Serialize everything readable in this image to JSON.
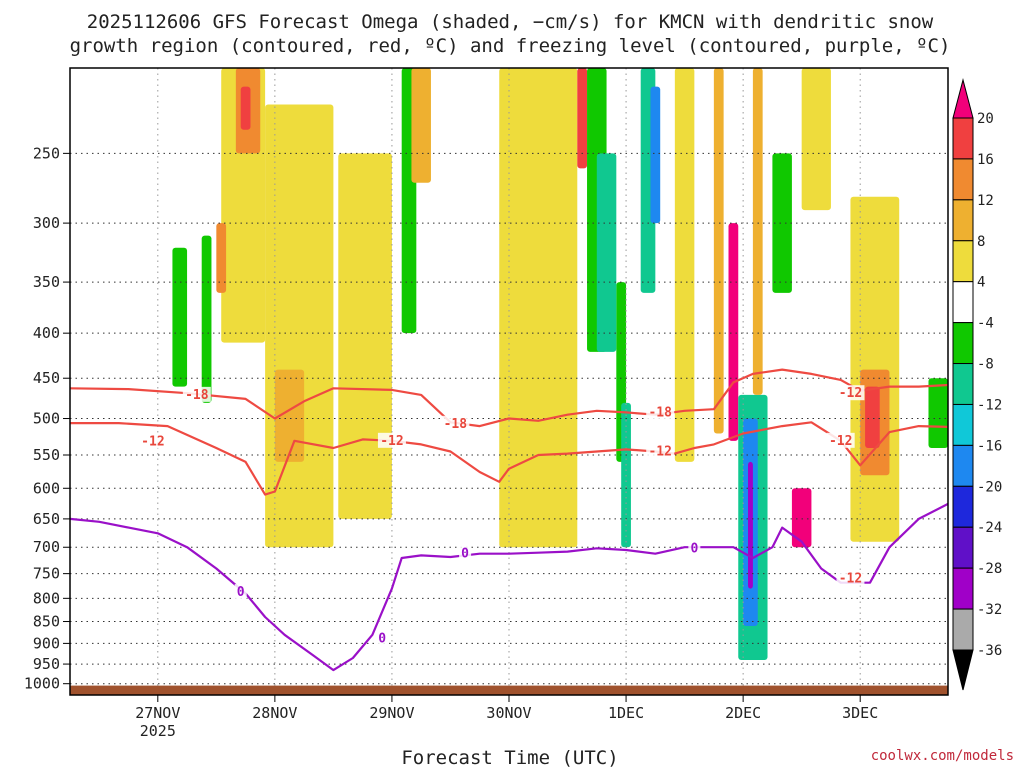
{
  "chart_data": {
    "type": "heatmap",
    "title_line1": "2025112606 GFS Forecast Omega (shaded, −cm/s) for KMCN with dendritic snow",
    "title_line2": "growth region (contoured, red, ºC) and freezing level (contoured, purple, ºC)",
    "xlabel": "Forecast Time (UTC)",
    "x_ticks": [
      {
        "t": 18,
        "label": "27NOV",
        "sublabel": "2025"
      },
      {
        "t": 42,
        "label": "28NOV"
      },
      {
        "t": 66,
        "label": "29NOV"
      },
      {
        "t": 90,
        "label": "30NOV"
      },
      {
        "t": 114,
        "label": "1DEC"
      },
      {
        "t": 138,
        "label": "2DEC"
      },
      {
        "t": 162,
        "label": "3DEC"
      }
    ],
    "x_range_hours": [
      0,
      180
    ],
    "y_ticks": [
      250,
      300,
      350,
      400,
      450,
      500,
      550,
      600,
      650,
      700,
      750,
      800,
      850,
      900,
      950,
      1000
    ],
    "y_range_hPa": [
      1030,
      200
    ],
    "colorbar": {
      "labels": [
        20,
        16,
        12,
        8,
        4,
        -4,
        -8,
        -12,
        -16,
        -20,
        -24,
        -28,
        -32,
        -36
      ],
      "colors": [
        "#f2007a",
        "#f04040",
        "#f08a30",
        "#eeb030",
        "#eedc3c",
        "#ffffff",
        "#10c800",
        "#10c890",
        "#10c8d8",
        "#1e88f0",
        "#1e28dc",
        "#6010c8",
        "#a000c8",
        "#aaaaaa",
        "#000000"
      ]
    },
    "series": [
      {
        "name": "-18",
        "color": "#ee4a42",
        "t": [
          0,
          12,
          24,
          36,
          42,
          48,
          54,
          66,
          72,
          78,
          84,
          90,
          96,
          102,
          108,
          114,
          120,
          126,
          132,
          136,
          140,
          146,
          152,
          158,
          162,
          168,
          174,
          180
        ],
        "p": [
          462,
          463,
          468,
          475,
          500,
          478,
          462,
          464,
          470,
          505,
          510,
          500,
          503,
          495,
          490,
          492,
          495,
          490,
          488,
          455,
          445,
          440,
          445,
          452,
          465,
          460,
          460,
          458
        ]
      },
      {
        "name": "-12",
        "color": "#ee4a42",
        "t": [
          0,
          10,
          20,
          30,
          36,
          40,
          42,
          46,
          54,
          60,
          66,
          72,
          78,
          84,
          88,
          90,
          96,
          102,
          108,
          114,
          120,
          124,
          128,
          132,
          138,
          146,
          152,
          158,
          162,
          168,
          174,
          180
        ],
        "p": [
          506,
          506,
          510,
          540,
          560,
          610,
          605,
          530,
          540,
          528,
          530,
          535,
          545,
          575,
          590,
          570,
          550,
          548,
          545,
          542,
          545,
          548,
          540,
          535,
          520,
          510,
          505,
          530,
          565,
          518,
          510,
          511
        ]
      },
      {
        "name": "0",
        "color": "#9a10c8",
        "t": [
          0,
          6,
          12,
          18,
          24,
          30,
          36,
          40,
          44,
          50,
          54,
          58,
          62,
          66,
          68,
          72,
          78,
          84,
          90,
          96,
          102,
          108,
          114,
          120,
          126,
          132,
          136,
          140,
          144,
          146,
          150,
          154,
          158,
          164,
          168,
          174,
          180
        ],
        "p": [
          650,
          655,
          665,
          675,
          700,
          740,
          790,
          840,
          880,
          930,
          965,
          935,
          880,
          780,
          720,
          715,
          718,
          712,
          712,
          710,
          708,
          702,
          705,
          712,
          700,
          700,
          700,
          720,
          700,
          665,
          690,
          740,
          768,
          768,
          700,
          650,
          625
        ]
      }
    ],
    "contour_labels": [
      {
        "text": "-18",
        "t": 26,
        "p": 470
      },
      {
        "text": "-18",
        "t": 79,
        "p": 507
      },
      {
        "text": "-18",
        "t": 121,
        "p": 492
      },
      {
        "text": "-12",
        "t": 17,
        "p": 531
      },
      {
        "text": "-12",
        "t": 66,
        "p": 530
      },
      {
        "text": "-12",
        "t": 121,
        "p": 545
      },
      {
        "text": "-12",
        "t": 158,
        "p": 530
      },
      {
        "text": "-12",
        "t": 160,
        "p": 468
      },
      {
        "text": "0",
        "t": 35,
        "p": 787
      },
      {
        "text": "0",
        "t": 81,
        "p": 712
      },
      {
        "text": "0",
        "t": 128,
        "p": 702
      },
      {
        "text": "0",
        "t": 64,
        "p": 888
      },
      {
        "text": "-12",
        "t": 160,
        "p": 760
      }
    ],
    "shaded_regions": [
      {
        "t0": 31,
        "t1": 40,
        "p0": 200,
        "p1": 410,
        "v": 6
      },
      {
        "t0": 34,
        "t1": 39,
        "p0": 200,
        "p1": 250,
        "v": 12
      },
      {
        "t0": 35,
        "t1": 37,
        "p0": 210,
        "p1": 235,
        "v": 18
      },
      {
        "t0": 30,
        "t1": 32,
        "p0": 300,
        "p1": 360,
        "v": 14
      },
      {
        "t0": 21,
        "t1": 24,
        "p0": 320,
        "p1": 460,
        "v": -6
      },
      {
        "t0": 27,
        "t1": 29,
        "p0": 310,
        "p1": 480,
        "v": -6
      },
      {
        "t0": 40,
        "t1": 54,
        "p0": 220,
        "p1": 700,
        "v": 5
      },
      {
        "t0": 42,
        "t1": 48,
        "p0": 440,
        "p1": 560,
        "v": 10
      },
      {
        "t0": 55,
        "t1": 66,
        "p0": 250,
        "p1": 650,
        "v": 5
      },
      {
        "t0": 68,
        "t1": 71,
        "p0": 200,
        "p1": 400,
        "v": -6
      },
      {
        "t0": 70,
        "t1": 74,
        "p0": 200,
        "p1": 270,
        "v": 10
      },
      {
        "t0": 88,
        "t1": 104,
        "p0": 200,
        "p1": 700,
        "v": 5
      },
      {
        "t0": 104,
        "t1": 106,
        "p0": 200,
        "p1": 260,
        "v": 18
      },
      {
        "t0": 106,
        "t1": 110,
        "p0": 200,
        "p1": 420,
        "v": -6
      },
      {
        "t0": 112,
        "t1": 114,
        "p0": 350,
        "p1": 560,
        "v": -8
      },
      {
        "t0": 108,
        "t1": 112,
        "p0": 250,
        "p1": 420,
        "v": -12
      },
      {
        "t0": 113,
        "t1": 115,
        "p0": 480,
        "p1": 700,
        "v": -10
      },
      {
        "t0": 117,
        "t1": 120,
        "p0": 200,
        "p1": 360,
        "v": -10
      },
      {
        "t0": 119,
        "t1": 121,
        "p0": 210,
        "p1": 300,
        "v": -20
      },
      {
        "t0": 124,
        "t1": 128,
        "p0": 200,
        "p1": 560,
        "v": 5
      },
      {
        "t0": 132,
        "t1": 134,
        "p0": 200,
        "p1": 520,
        "v": 8
      },
      {
        "t0": 135,
        "t1": 137,
        "p0": 300,
        "p1": 530,
        "v": 20
      },
      {
        "t0": 137,
        "t1": 143,
        "p0": 470,
        "p1": 940,
        "v": -10
      },
      {
        "t0": 138,
        "t1": 141,
        "p0": 500,
        "p1": 860,
        "v": -18
      },
      {
        "t0": 139,
        "t1": 140,
        "p0": 560,
        "p1": 780,
        "v": -30
      },
      {
        "t0": 140,
        "t1": 142,
        "p0": 200,
        "p1": 470,
        "v": 10
      },
      {
        "t0": 144,
        "t1": 148,
        "p0": 250,
        "p1": 360,
        "v": -8
      },
      {
        "t0": 148,
        "t1": 152,
        "p0": 600,
        "p1": 700,
        "v": 20
      },
      {
        "t0": 150,
        "t1": 156,
        "p0": 200,
        "p1": 290,
        "v": 6
      },
      {
        "t0": 160,
        "t1": 170,
        "p0": 280,
        "p1": 690,
        "v": 6
      },
      {
        "t0": 162,
        "t1": 168,
        "p0": 440,
        "p1": 580,
        "v": 12
      },
      {
        "t0": 163,
        "t1": 166,
        "p0": 460,
        "p1": 540,
        "v": 18
      },
      {
        "t0": 176,
        "t1": 180,
        "p0": 450,
        "p1": 540,
        "v": -6
      }
    ],
    "ground_top_hPa": 1005
  },
  "credit": "coolwx.com/models"
}
